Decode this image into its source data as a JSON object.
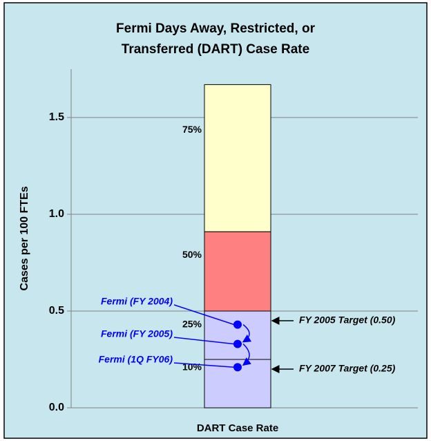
{
  "chart_data": {
    "type": "bar",
    "title": [
      "Fermi Days Away, Restricted, or",
      "Transferred (DART) Case Rate"
    ],
    "ylabel": "Cases per 100 FTEs",
    "categories": [
      "DART Case Rate"
    ],
    "ylim": [
      0,
      1.75
    ],
    "yticks": [
      {
        "value": 0,
        "label": "0.0"
      },
      {
        "value": 0.5,
        "label": "0.5"
      },
      {
        "value": 1,
        "label": "1.0"
      },
      {
        "value": 1.5,
        "label": "1.5"
      }
    ],
    "grid": true,
    "series": [
      {
        "name": "10%",
        "color": "#ccccff",
        "values": [
          0.25
        ]
      },
      {
        "name": "25%",
        "color": "#ccccff",
        "values": [
          0.25
        ]
      },
      {
        "name": "50%",
        "color": "#ff8080",
        "values": [
          0.41
        ]
      },
      {
        "name": "75%",
        "color": "#ffffcc",
        "values": [
          0.76
        ]
      }
    ],
    "points": [
      {
        "label": "Fermi (FY 2004)",
        "value": 0.43
      },
      {
        "label": "Fermi (FY 2005)",
        "value": 0.33
      },
      {
        "label": "Fermi (1Q FY06)",
        "value": 0.21
      }
    ],
    "point_color": "#0000ff",
    "targets": [
      {
        "label": "FY 2005 Target (0.50)",
        "value": 0.5
      },
      {
        "label": "FY 2007 Target (0.25)",
        "value": 0.25
      }
    ]
  }
}
